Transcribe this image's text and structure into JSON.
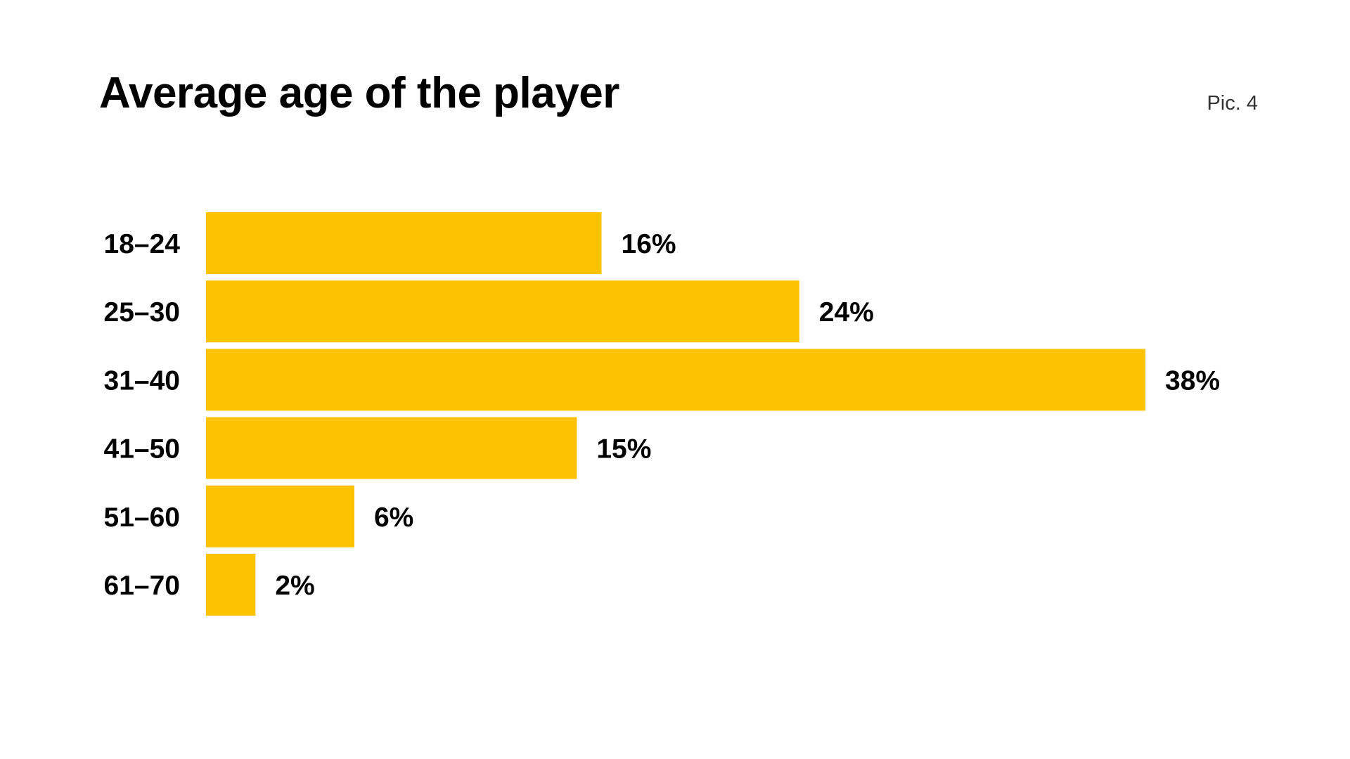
{
  "header": {
    "title": "Average age of the player",
    "figure_label": "Pic. 4"
  },
  "colors": {
    "bar": "#FDC300",
    "background": "#FFFFFF",
    "text": "#000000"
  },
  "chart_data": {
    "type": "bar",
    "orientation": "horizontal",
    "title": "Average age of the player",
    "xlabel": "",
    "ylabel": "",
    "grid": false,
    "legend": "none",
    "value_suffix": "%",
    "categories": [
      "18–24",
      "25–30",
      "31–40",
      "41–50",
      "51–60",
      "61–70"
    ],
    "values": [
      16,
      24,
      38,
      15,
      6,
      2
    ],
    "value_labels": [
      "16%",
      "24%",
      "38%",
      "15%",
      "6%",
      "2%"
    ],
    "xlim": [
      0,
      38
    ]
  }
}
